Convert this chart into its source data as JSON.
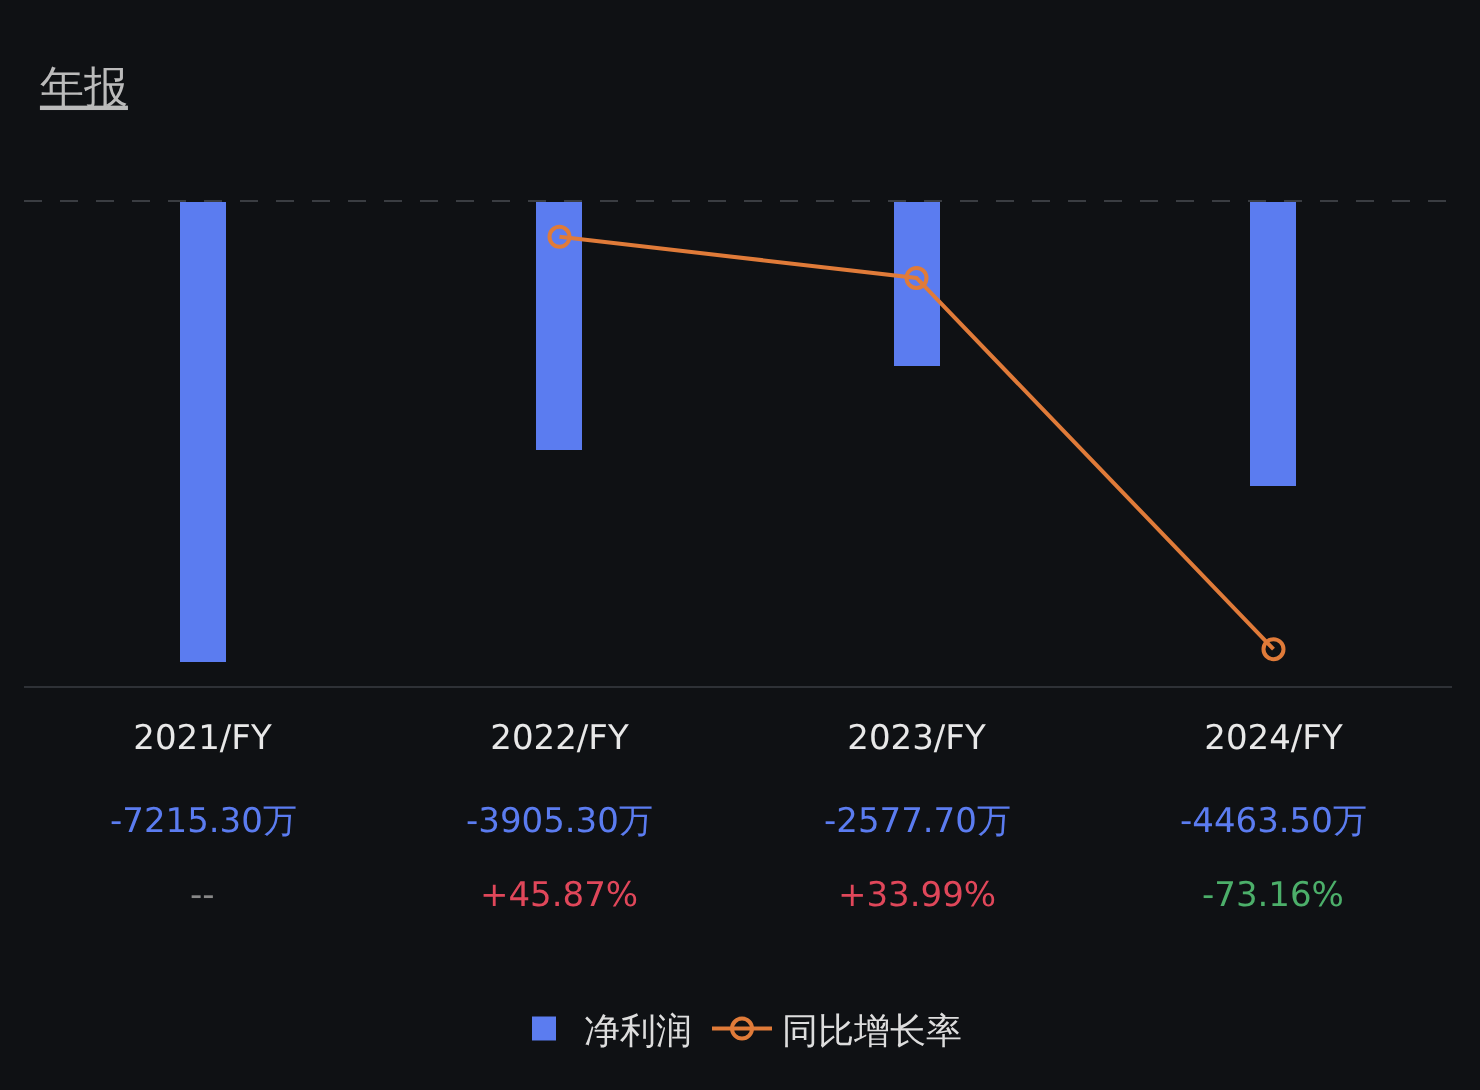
{
  "chart_data": {
    "type": "bar",
    "title": "年报",
    "categories": [
      "2021/FY",
      "2022/FY",
      "2023/FY",
      "2024/FY"
    ],
    "series": [
      {
        "name": "净利润",
        "color": "#5b7cf0",
        "values": [
          -7215.3,
          -3905.3,
          -2577.7,
          -4463.5
        ],
        "value_labels": [
          "-7215.30万",
          "-3905.30万",
          "-2577.70万",
          "-4463.50万"
        ]
      },
      {
        "name": "同比增长率",
        "type": "line",
        "axis": "y2",
        "color": "#e07b39",
        "values": [
          null,
          45.87,
          33.99,
          -73.16
        ],
        "value_labels": [
          "--",
          "+45.87%",
          "+33.99%",
          "-73.16%"
        ]
      }
    ],
    "ref_lines": [
      {
        "axis": "y",
        "value": 0,
        "line_style": "dashed",
        "color": "#3a3d42"
      }
    ],
    "marker": "circle",
    "line_style": "solid",
    "grid": false,
    "legend": "bottom",
    "tick_labels": "x"
  }
}
